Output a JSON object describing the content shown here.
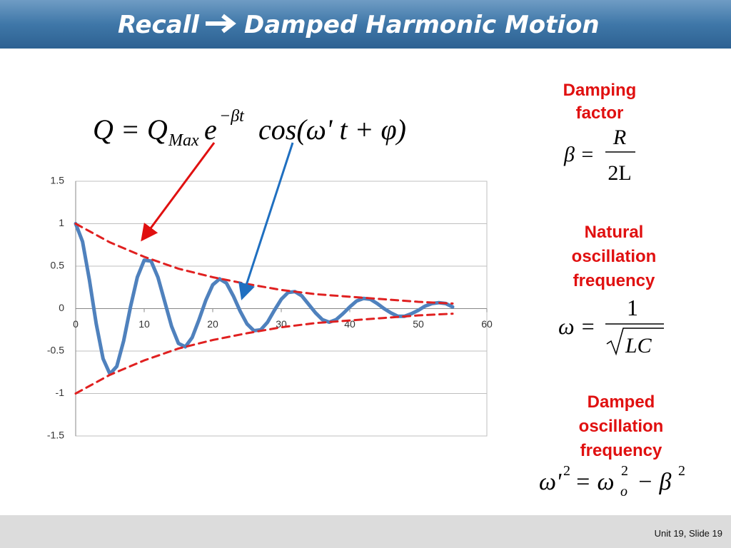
{
  "header": {
    "title_left": "Recall",
    "title_right": "Damped Harmonic Motion"
  },
  "equation": {
    "lhs": "Q = Q",
    "sub": "Max",
    "base": "e",
    "exponent": "−βt",
    "rest": "cos(ω' t + φ)"
  },
  "damping": {
    "label": [
      "Damping",
      "factor"
    ],
    "lhs": "β =",
    "numerator": "R",
    "denominator": "2L"
  },
  "natural": {
    "label": [
      "Natural",
      "oscillation",
      "frequency"
    ],
    "lhs": "ω =",
    "numerator": "1",
    "radicand": "LC"
  },
  "damped": {
    "label": [
      "Damped",
      "oscillation",
      "frequency"
    ],
    "lhs": "ω'",
    "lhs_exp": "2",
    "mid": "= ω",
    "mid_exp": "2",
    "mid_sub": "o",
    "rhs": "− β",
    "rhs_exp": "2"
  },
  "footer": "Unit 19, Slide 19",
  "chart_data": {
    "type": "line",
    "xlim": [
      0,
      60
    ],
    "xticks": [
      0,
      10,
      20,
      30,
      40,
      50,
      60
    ],
    "ylim": [
      -1.5,
      1.5
    ],
    "yticks": [
      -1.5,
      -1,
      -0.5,
      0,
      0.5,
      1,
      1.5
    ],
    "grid": true,
    "series": [
      {
        "color": "#4f81bd",
        "dashed": false,
        "x": [
          0,
          1,
          2,
          3,
          4,
          5,
          6,
          7,
          8,
          9,
          10,
          11,
          12,
          13,
          14,
          15,
          16,
          17,
          18,
          19,
          20,
          21,
          22,
          23,
          24,
          25,
          26,
          27,
          28,
          29,
          30,
          31,
          32,
          33,
          34,
          35,
          36,
          37,
          38,
          39,
          40,
          41,
          42,
          43,
          44,
          45,
          46,
          47,
          48,
          49,
          50,
          51,
          52,
          53,
          54,
          55
        ],
        "values": [
          1,
          0.79,
          0.34,
          -0.18,
          -0.59,
          -0.77,
          -0.68,
          -0.38,
          0.02,
          0.37,
          0.57,
          0.56,
          0.37,
          0.08,
          -0.21,
          -0.41,
          -0.45,
          -0.34,
          -0.13,
          0.1,
          0.28,
          0.35,
          0.3,
          0.15,
          -0.03,
          -0.18,
          -0.26,
          -0.25,
          -0.16,
          -0.02,
          0.11,
          0.19,
          0.2,
          0.15,
          0.05,
          -0.05,
          -0.13,
          -0.16,
          -0.13,
          -0.06,
          0.02,
          0.09,
          0.12,
          0.11,
          0.06,
          0,
          -0.05,
          -0.09,
          -0.09,
          -0.06,
          -0.02,
          0.03,
          0.06,
          0.07,
          0.06,
          0.02
        ]
      },
      {
        "color": "#e02020",
        "dashed": true,
        "x": [
          0,
          5,
          10,
          15,
          20,
          25,
          30,
          35,
          40,
          45,
          50,
          55
        ],
        "values": [
          1,
          0.78,
          0.61,
          0.47,
          0.37,
          0.29,
          0.22,
          0.17,
          0.14,
          0.11,
          0.08,
          0.06
        ]
      },
      {
        "color": "#e02020",
        "dashed": true,
        "x": [
          0,
          5,
          10,
          15,
          20,
          25,
          30,
          35,
          40,
          45,
          50,
          55
        ],
        "values": [
          -1,
          -0.78,
          -0.61,
          -0.47,
          -0.37,
          -0.29,
          -0.22,
          -0.17,
          -0.14,
          -0.11,
          -0.08,
          -0.06
        ]
      }
    ]
  }
}
